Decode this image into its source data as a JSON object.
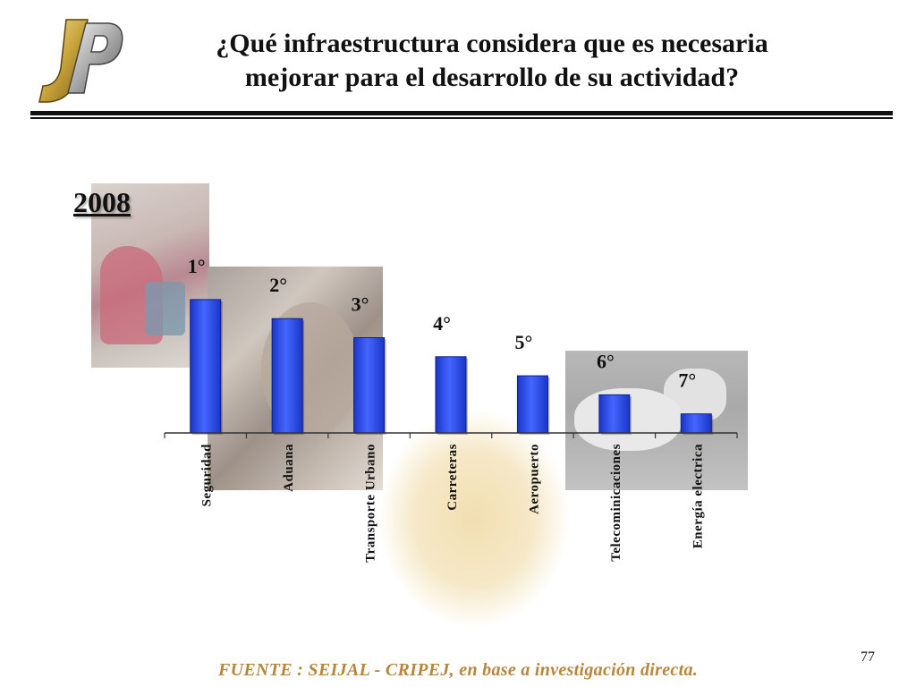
{
  "header": {
    "title_line1": "¿Qué infraestructura considera que es necesaria",
    "title_line2": "mejorar para el desarrollo de su actividad?"
  },
  "year_label": "2008",
  "chart_data": {
    "type": "bar",
    "categories": [
      "Seguridad",
      "Aduana",
      "Transporte Urbano",
      "Carreteras",
      "Aeropuerto",
      "Telecominicaciones",
      "Energía electrica"
    ],
    "rank_labels": [
      "1°",
      "2°",
      "3°",
      "4°",
      "5°",
      "6°",
      "7°"
    ],
    "values": [
      7,
      6,
      5,
      4,
      3,
      2,
      1
    ],
    "ylim": [
      0,
      8
    ],
    "grid": false,
    "legend": "none",
    "bar_color": "#3355ee"
  },
  "footer": {
    "page_number": "77",
    "source": "FUENTE :  SEIJAL - CRIPEJ,  en base a investigación directa."
  },
  "colors": {
    "source_text": "#b8863a",
    "rule": "#111111"
  }
}
